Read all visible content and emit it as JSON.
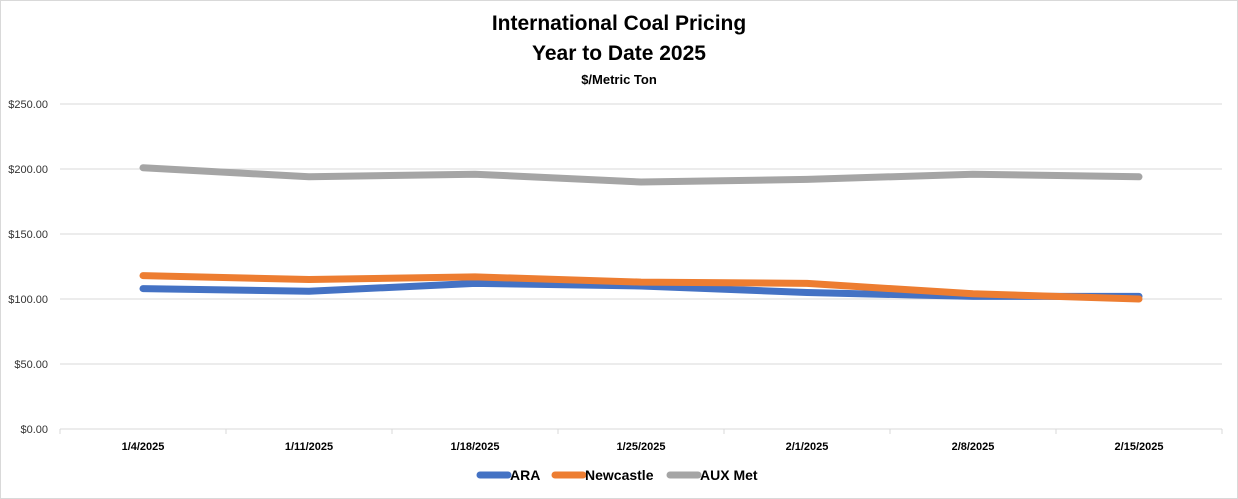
{
  "chart_data": {
    "type": "line",
    "title": "International Coal Pricing",
    "subtitle": "Year to Date 2025",
    "unit_label": "$/Metric Ton",
    "categories": [
      "1/4/2025",
      "1/11/2025",
      "1/18/2025",
      "1/25/2025",
      "2/1/2025",
      "2/8/2025",
      "2/15/2025"
    ],
    "y_ticks": [
      "$0.00",
      "$50.00",
      "$100.00",
      "$150.00",
      "$200.00",
      "$250.00"
    ],
    "ylim": [
      0,
      250
    ],
    "grid": true,
    "legend_position": "bottom",
    "series": [
      {
        "name": "ARA",
        "color": "#4472C4",
        "values": [
          108,
          106,
          112,
          110,
          105,
          102,
          102
        ]
      },
      {
        "name": "Newcastle",
        "color": "#ED7D31",
        "values": [
          118,
          115,
          117,
          113,
          112,
          104,
          100
        ]
      },
      {
        "name": "AUX Met",
        "color": "#A5A5A5",
        "values": [
          201,
          194,
          196,
          190,
          192,
          196,
          194
        ]
      }
    ]
  }
}
